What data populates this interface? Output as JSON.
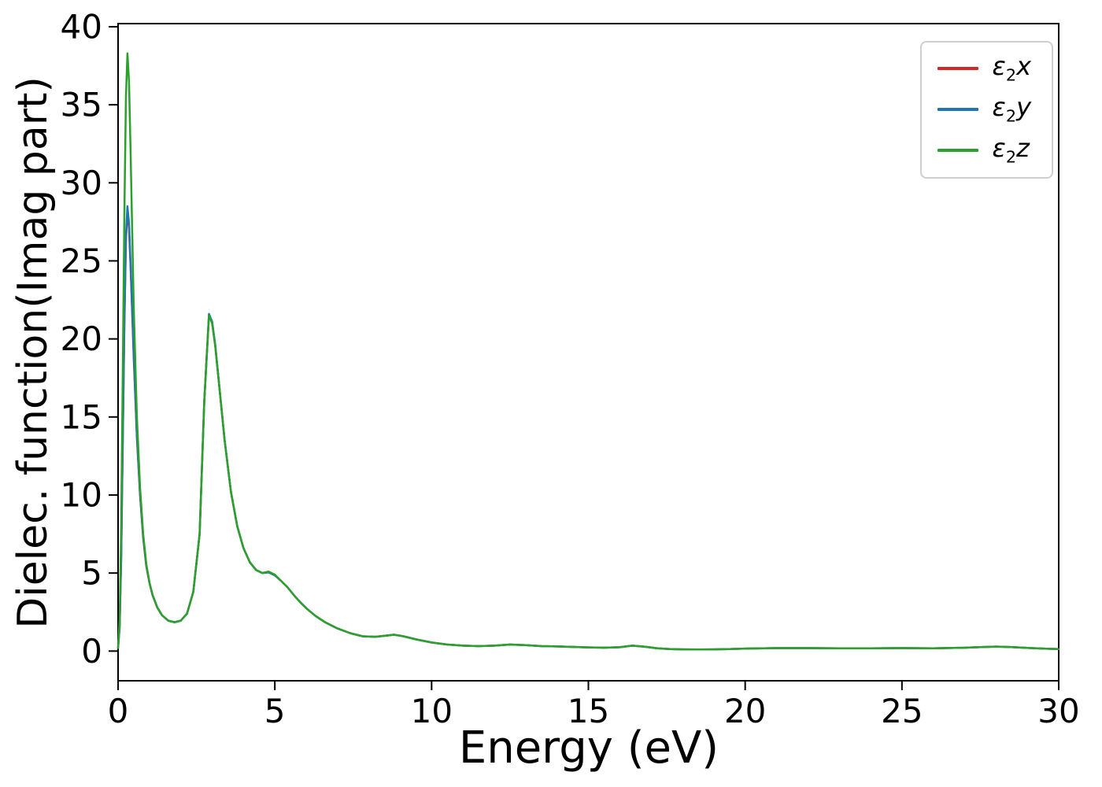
{
  "figure": {
    "background": "#ffffff"
  },
  "chart_data": {
    "type": "line",
    "title": "",
    "xlabel": "Energy (eV)",
    "ylabel": "Dielec. function(Imag part)",
    "xlim": [
      0,
      30
    ],
    "ylim": [
      -1.9,
      40.2
    ],
    "x_ticks": [
      0,
      5,
      10,
      15,
      20,
      25,
      30
    ],
    "y_ticks": [
      0,
      5,
      10,
      15,
      20,
      25,
      30,
      35,
      40
    ],
    "grid": false,
    "legend_position": "upper right",
    "axis_color": "#000000",
    "x": [
      0,
      0.05,
      0.1,
      0.15,
      0.2,
      0.25,
      0.3,
      0.35,
      0.4,
      0.5,
      0.6,
      0.7,
      0.8,
      0.9,
      1.0,
      1.1,
      1.25,
      1.4,
      1.6,
      1.8,
      2.0,
      2.2,
      2.4,
      2.6,
      2.75,
      2.9,
      3.0,
      3.1,
      3.25,
      3.4,
      3.6,
      3.8,
      4.0,
      4.2,
      4.4,
      4.6,
      4.8,
      5.0,
      5.2,
      5.4,
      5.6,
      5.8,
      6.0,
      6.3,
      6.6,
      7.0,
      7.4,
      7.8,
      8.2,
      8.5,
      8.8,
      9.1,
      9.5,
      10.0,
      10.5,
      11.0,
      11.5,
      12.0,
      12.5,
      13.0,
      13.5,
      14.0,
      14.5,
      15.0,
      15.5,
      16.0,
      16.4,
      16.8,
      17.2,
      17.6,
      18.0,
      18.5,
      19.0,
      19.5,
      20.0,
      21.0,
      22.0,
      23.0,
      24.0,
      25.0,
      26.0,
      27.0,
      27.5,
      28.0,
      28.5,
      29.0,
      29.5,
      30.0
    ],
    "series": [
      {
        "name": "e2x",
        "label": {
          "symbol": "ε",
          "sub": "2",
          "var": "x"
        },
        "color": "#d62728",
        "values": [
          0.2,
          1.5,
          6.0,
          13.5,
          20.8,
          26.3,
          28.2,
          27.1,
          24.6,
          18.8,
          13.7,
          10.0,
          7.25,
          5.45,
          4.38,
          3.58,
          2.8,
          2.3,
          1.95,
          1.85,
          1.95,
          2.4,
          3.8,
          7.5,
          16.0,
          21.55,
          21.05,
          19.55,
          16.5,
          13.5,
          10.2,
          8.0,
          6.6,
          5.7,
          5.2,
          5.0,
          5.05,
          4.85,
          4.5,
          4.1,
          3.6,
          3.15,
          2.75,
          2.25,
          1.85,
          1.45,
          1.15,
          0.95,
          0.92,
          0.98,
          1.05,
          0.95,
          0.75,
          0.55,
          0.42,
          0.35,
          0.32,
          0.35,
          0.42,
          0.38,
          0.32,
          0.3,
          0.27,
          0.24,
          0.22,
          0.25,
          0.35,
          0.28,
          0.18,
          0.13,
          0.11,
          0.1,
          0.11,
          0.13,
          0.16,
          0.19,
          0.19,
          0.18,
          0.18,
          0.19,
          0.18,
          0.22,
          0.26,
          0.29,
          0.26,
          0.2,
          0.16,
          0.13
        ]
      },
      {
        "name": "e2y",
        "label": {
          "symbol": "ε",
          "sub": "2",
          "var": "y"
        },
        "color": "#1f77b4",
        "values": [
          0.2,
          1.6,
          6.2,
          13.8,
          21.2,
          26.6,
          28.5,
          27.4,
          24.8,
          19.0,
          13.8,
          10.1,
          7.3,
          5.5,
          4.4,
          3.6,
          2.8,
          2.3,
          1.95,
          1.85,
          1.95,
          2.4,
          3.8,
          7.5,
          16.0,
          21.6,
          21.1,
          19.6,
          16.5,
          13.5,
          10.2,
          8.0,
          6.6,
          5.7,
          5.2,
          5.0,
          5.05,
          4.85,
          4.5,
          4.1,
          3.6,
          3.15,
          2.75,
          2.25,
          1.85,
          1.45,
          1.15,
          0.95,
          0.92,
          0.98,
          1.05,
          0.95,
          0.75,
          0.55,
          0.42,
          0.35,
          0.32,
          0.35,
          0.42,
          0.38,
          0.32,
          0.3,
          0.27,
          0.24,
          0.22,
          0.25,
          0.35,
          0.28,
          0.18,
          0.13,
          0.11,
          0.1,
          0.11,
          0.13,
          0.16,
          0.19,
          0.19,
          0.18,
          0.18,
          0.19,
          0.18,
          0.22,
          0.26,
          0.29,
          0.26,
          0.2,
          0.16,
          0.13
        ]
      },
      {
        "name": "e2z",
        "label": {
          "symbol": "ε",
          "sub": "2",
          "var": "z"
        },
        "color": "#2ca02c",
        "values": [
          0.2,
          2.0,
          8.0,
          18.0,
          28.0,
          35.5,
          38.3,
          36.5,
          32.0,
          22.0,
          15.0,
          10.5,
          7.5,
          5.6,
          4.4,
          3.6,
          2.8,
          2.3,
          1.95,
          1.85,
          1.95,
          2.4,
          3.8,
          7.5,
          16.0,
          21.5,
          21.0,
          19.5,
          16.5,
          13.5,
          10.2,
          8.0,
          6.6,
          5.7,
          5.2,
          5.0,
          5.1,
          4.9,
          4.5,
          4.1,
          3.6,
          3.15,
          2.75,
          2.25,
          1.85,
          1.45,
          1.15,
          0.95,
          0.92,
          0.98,
          1.05,
          0.95,
          0.75,
          0.55,
          0.42,
          0.35,
          0.32,
          0.35,
          0.42,
          0.38,
          0.32,
          0.3,
          0.27,
          0.24,
          0.22,
          0.25,
          0.35,
          0.28,
          0.18,
          0.13,
          0.11,
          0.1,
          0.11,
          0.13,
          0.16,
          0.19,
          0.19,
          0.18,
          0.18,
          0.19,
          0.18,
          0.22,
          0.26,
          0.29,
          0.26,
          0.2,
          0.16,
          0.13
        ]
      }
    ]
  }
}
